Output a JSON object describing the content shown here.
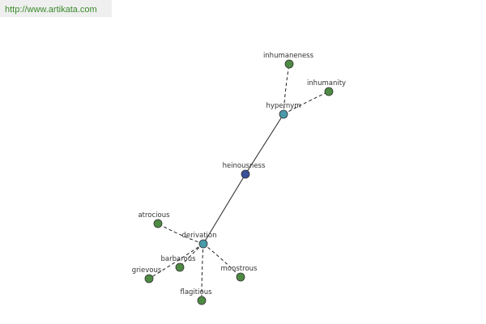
{
  "header": {
    "url": "http://www.artikata.com"
  },
  "nodes": [
    {
      "label": "heinousness"
    },
    {
      "label": "hypernym"
    },
    {
      "label": "derivation"
    },
    {
      "label": "inhumaneness"
    },
    {
      "label": "inhumanity"
    },
    {
      "label": "atrocious"
    },
    {
      "label": "barbarous"
    },
    {
      "label": "grievous"
    },
    {
      "label": "flagitious"
    },
    {
      "label": "monstrous"
    }
  ]
}
